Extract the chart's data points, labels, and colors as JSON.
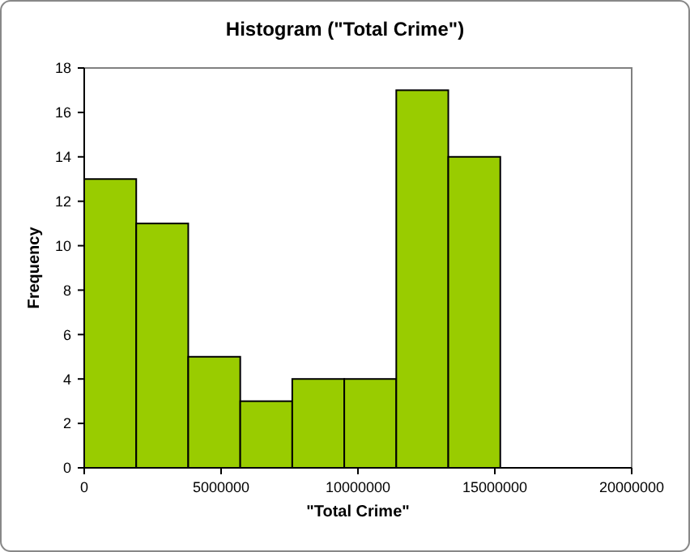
{
  "chart_data": {
    "type": "histogram",
    "title": "Histogram (\"Total Crime\")",
    "xlabel": "\"Total Crime\"",
    "ylabel": "Frequency",
    "bins": [
      0,
      1900000,
      3800000,
      5700000,
      7600000,
      9500000,
      11400000,
      13300000,
      15200000
    ],
    "values": [
      13,
      11,
      5,
      3,
      4,
      4,
      17,
      14
    ],
    "color": "#99cc00",
    "xlim": [
      0,
      20000000
    ],
    "xticks": [
      0,
      5000000,
      10000000,
      15000000,
      20000000
    ],
    "ylim": [
      0,
      18
    ],
    "yticks": [
      0,
      2,
      4,
      6,
      8,
      10,
      12,
      14,
      16,
      18
    ],
    "grid": false
  }
}
